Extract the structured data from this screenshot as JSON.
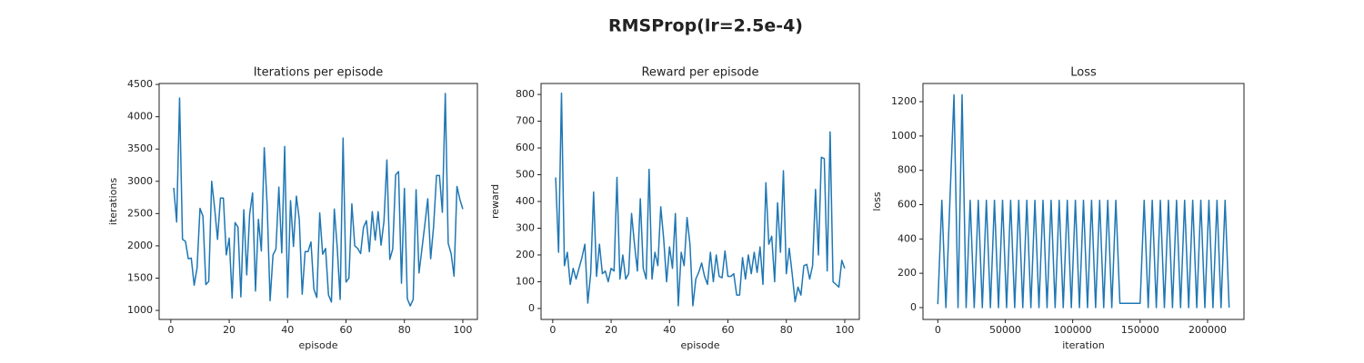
{
  "suptitle": "RMSProp(lr=2.5e-4)",
  "chart_data": [
    {
      "type": "line",
      "title": "Iterations per episode",
      "xlabel": "episode",
      "ylabel": "iterations",
      "color": "#1f77b4",
      "x": [
        1,
        2,
        3,
        4,
        5,
        6,
        7,
        8,
        9,
        10,
        11,
        12,
        13,
        14,
        15,
        16,
        17,
        18,
        19,
        20,
        21,
        22,
        23,
        24,
        25,
        26,
        27,
        28,
        29,
        30,
        31,
        32,
        33,
        34,
        35,
        36,
        37,
        38,
        39,
        40,
        41,
        42,
        43,
        44,
        45,
        46,
        47,
        48,
        49,
        50,
        51,
        52,
        53,
        54,
        55,
        56,
        57,
        58,
        59,
        60,
        61,
        62,
        63,
        64,
        65,
        66,
        67,
        68,
        69,
        70,
        71,
        72,
        73,
        74,
        75,
        76,
        77,
        78,
        79,
        80,
        81,
        82,
        83,
        84,
        85,
        86,
        87,
        88,
        89,
        90,
        91,
        92,
        93,
        94,
        95,
        96,
        97,
        98,
        99,
        100
      ],
      "values": [
        2900,
        2370,
        4290,
        2100,
        2070,
        1800,
        1810,
        1390,
        1660,
        2580,
        2460,
        1400,
        1450,
        3000,
        2590,
        2100,
        2740,
        2740,
        1860,
        2120,
        1190,
        2360,
        2290,
        1210,
        2560,
        1550,
        2490,
        2820,
        1300,
        2410,
        1920,
        3520,
        2620,
        1150,
        1860,
        1950,
        2910,
        1890,
        3540,
        1200,
        2700,
        1990,
        2770,
        2410,
        1250,
        1910,
        1910,
        2060,
        1330,
        1200,
        2510,
        1870,
        1960,
        1240,
        1130,
        2570,
        1970,
        1170,
        3670,
        1440,
        1500,
        2650,
        2000,
        1960,
        1880,
        2290,
        2390,
        1910,
        2530,
        2090,
        2530,
        2010,
        2380,
        3330,
        1790,
        1950,
        3100,
        3150,
        1420,
        2890,
        1180,
        1070,
        1170,
        2870,
        1580,
        1950,
        2330,
        2730,
        1800,
        2300,
        3090,
        3090,
        2520,
        4360,
        2040,
        1880,
        1530,
        2920,
        2720,
        2570
      ],
      "xlim": [
        -4,
        105
      ],
      "xticks": [
        0,
        20,
        40,
        60,
        80,
        100
      ],
      "ylim": [
        860,
        4515
      ],
      "yticks": [
        1000,
        1500,
        2000,
        2500,
        3000,
        3500,
        4000,
        4500
      ]
    },
    {
      "type": "line",
      "title": "Reward per episode",
      "xlabel": "episode",
      "ylabel": "reward",
      "color": "#1f77b4",
      "x": [
        1,
        2,
        3,
        4,
        5,
        6,
        7,
        8,
        9,
        10,
        11,
        12,
        13,
        14,
        15,
        16,
        17,
        18,
        19,
        20,
        21,
        22,
        23,
        24,
        25,
        26,
        27,
        28,
        29,
        30,
        31,
        32,
        33,
        34,
        35,
        36,
        37,
        38,
        39,
        40,
        41,
        42,
        43,
        44,
        45,
        46,
        47,
        48,
        49,
        50,
        51,
        52,
        53,
        54,
        55,
        56,
        57,
        58,
        59,
        60,
        61,
        62,
        63,
        64,
        65,
        66,
        67,
        68,
        69,
        70,
        71,
        72,
        73,
        74,
        75,
        76,
        77,
        78,
        79,
        80,
        81,
        82,
        83,
        84,
        85,
        86,
        87,
        88,
        89,
        90,
        91,
        92,
        93,
        94,
        95,
        96,
        97,
        98,
        99,
        100
      ],
      "values": [
        490,
        210,
        805,
        160,
        210,
        90,
        150,
        110,
        150,
        190,
        240,
        20,
        130,
        435,
        120,
        240,
        130,
        140,
        100,
        150,
        140,
        490,
        110,
        200,
        110,
        130,
        355,
        240,
        140,
        410,
        150,
        110,
        520,
        110,
        210,
        160,
        380,
        260,
        100,
        230,
        150,
        355,
        10,
        210,
        160,
        340,
        240,
        10,
        110,
        135,
        170,
        120,
        90,
        210,
        100,
        200,
        120,
        115,
        215,
        120,
        120,
        130,
        50,
        50,
        190,
        110,
        200,
        130,
        210,
        135,
        230,
        90,
        470,
        240,
        270,
        100,
        395,
        210,
        515,
        130,
        225,
        130,
        25,
        80,
        50,
        160,
        165,
        110,
        160,
        445,
        200,
        565,
        560,
        140,
        660,
        100,
        90,
        80,
        180,
        150
      ],
      "xlim": [
        -4,
        105
      ],
      "xticks": [
        0,
        20,
        40,
        60,
        80,
        100
      ],
      "ylim": [
        -41,
        841
      ],
      "yticks": [
        0,
        100,
        200,
        300,
        400,
        500,
        600,
        700,
        800
      ]
    },
    {
      "type": "line",
      "title": "Loss",
      "xlabel": "iteration",
      "ylabel": "loss",
      "color": "#1f77b4",
      "x": [
        0,
        3000,
        6000,
        9000,
        12000,
        15000,
        18000,
        21000,
        24000,
        27000,
        30000,
        33000,
        36000,
        39000,
        42000,
        45000,
        48000,
        51000,
        54000,
        57000,
        60000,
        63000,
        66000,
        69000,
        72000,
        75000,
        78000,
        81000,
        84000,
        87000,
        90000,
        93000,
        96000,
        99000,
        102000,
        105000,
        108000,
        111000,
        114000,
        117000,
        120000,
        123000,
        126000,
        129000,
        132000,
        135000,
        138000,
        141000,
        144000,
        147000,
        150000,
        153000,
        156000,
        159000,
        162000,
        165000,
        168000,
        171000,
        174000,
        177000,
        180000,
        183000,
        186000,
        189000,
        192000,
        195000,
        198000,
        201000,
        204000,
        207000,
        210000,
        213000,
        216000
      ],
      "values": [
        20,
        625,
        0,
        630,
        1240,
        0,
        1240,
        0,
        625,
        0,
        625,
        0,
        625,
        0,
        625,
        0,
        625,
        0,
        625,
        0,
        625,
        0,
        625,
        0,
        625,
        0,
        625,
        0,
        625,
        0,
        625,
        0,
        625,
        0,
        625,
        0,
        625,
        0,
        625,
        0,
        625,
        0,
        625,
        0,
        625,
        25,
        25,
        25,
        25,
        25,
        25,
        625,
        0,
        625,
        0,
        625,
        0,
        625,
        0,
        625,
        0,
        625,
        0,
        625,
        0,
        625,
        0,
        625,
        0,
        625,
        0,
        625,
        0
      ],
      "xlim": [
        -11000,
        227000
      ],
      "xticks": [
        0,
        50000,
        100000,
        150000,
        200000
      ],
      "ylim": [
        -69,
        1306
      ],
      "yticks": [
        0,
        200,
        400,
        600,
        800,
        1000,
        1200
      ]
    }
  ]
}
